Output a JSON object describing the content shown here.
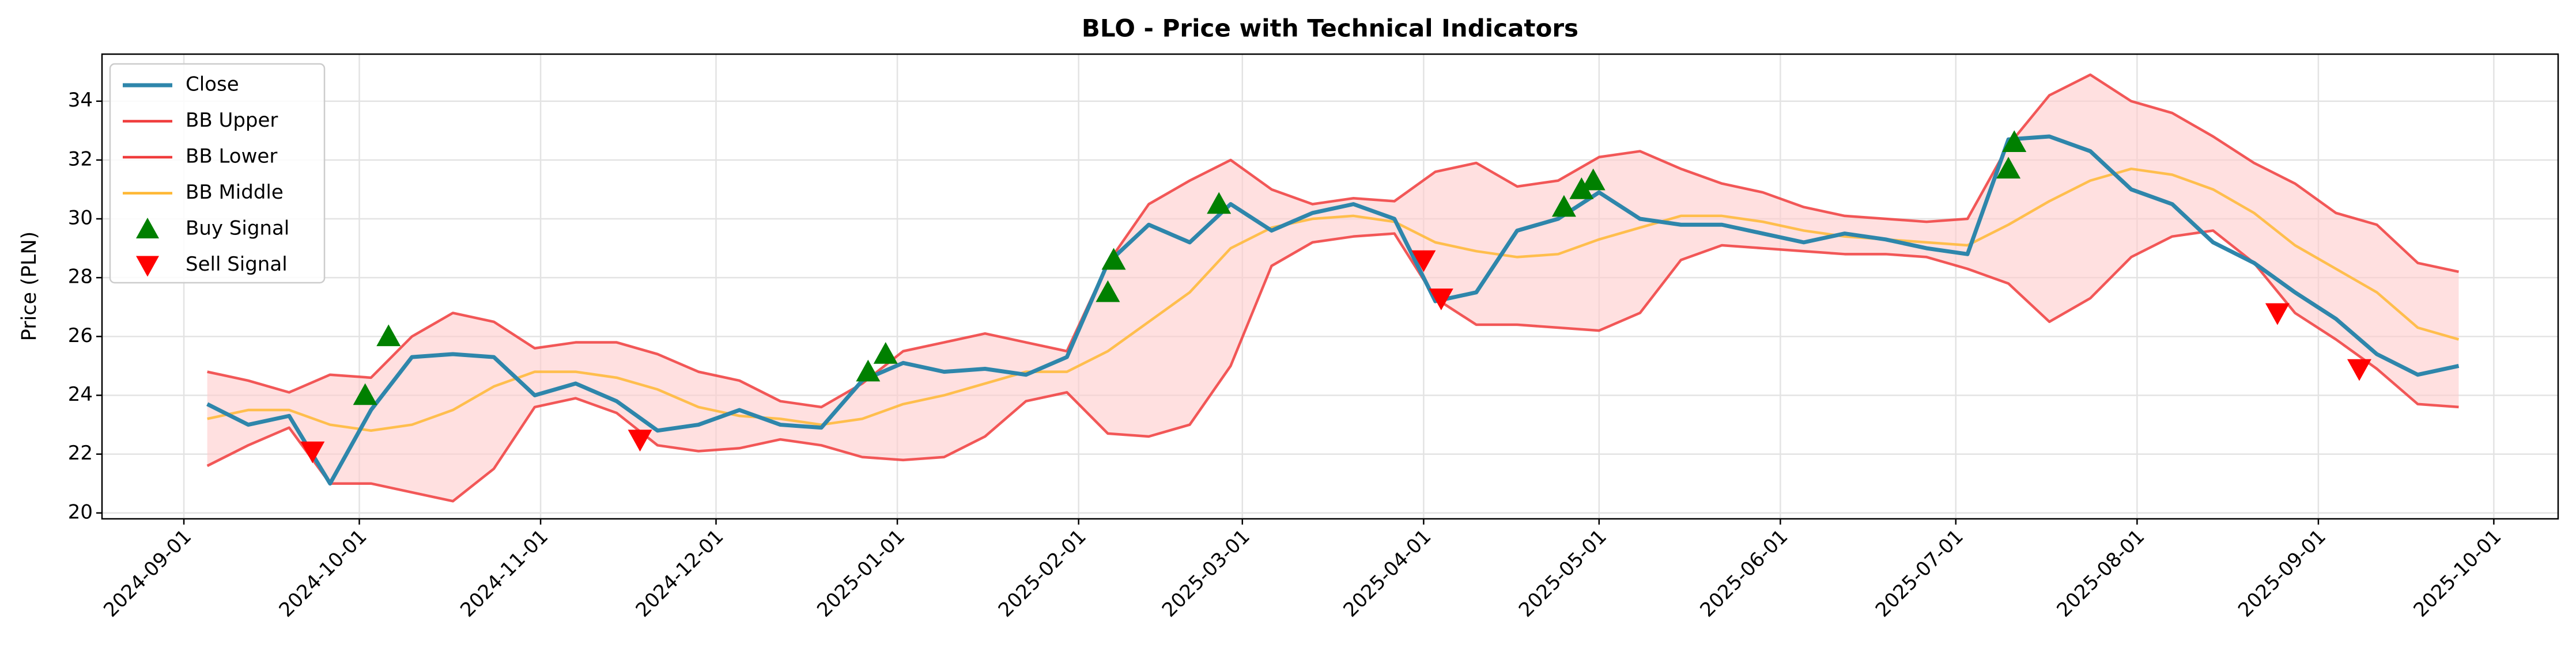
{
  "chart_data": {
    "type": "line",
    "title": "BLO - Price with Technical Indicators",
    "ylabel": "Price (PLN)",
    "x": [
      "2024-09-05",
      "2024-09-12",
      "2024-09-19",
      "2024-09-26",
      "2024-10-03",
      "2024-10-10",
      "2024-10-17",
      "2024-10-24",
      "2024-10-31",
      "2024-11-07",
      "2024-11-14",
      "2024-11-21",
      "2024-11-28",
      "2024-12-05",
      "2024-12-12",
      "2024-12-19",
      "2024-12-26",
      "2025-01-02",
      "2025-01-09",
      "2025-01-16",
      "2025-01-23",
      "2025-01-30",
      "2025-02-06",
      "2025-02-13",
      "2025-02-20",
      "2025-02-27",
      "2025-03-06",
      "2025-03-13",
      "2025-03-20",
      "2025-03-27",
      "2025-04-03",
      "2025-04-10",
      "2025-04-17",
      "2025-04-24",
      "2025-05-01",
      "2025-05-08",
      "2025-05-15",
      "2025-05-22",
      "2025-05-29",
      "2025-06-05",
      "2025-06-12",
      "2025-06-19",
      "2025-06-26",
      "2025-07-03",
      "2025-07-10",
      "2025-07-17",
      "2025-07-24",
      "2025-07-31",
      "2025-08-07",
      "2025-08-14",
      "2025-08-21",
      "2025-08-28",
      "2025-09-04",
      "2025-09-11",
      "2025-09-18",
      "2025-09-25"
    ],
    "series": [
      {
        "name": "Close",
        "color": "#2e86ab",
        "width": 7,
        "values": [
          23.7,
          23.0,
          23.3,
          21.0,
          23.5,
          25.3,
          25.4,
          25.3,
          24.0,
          24.4,
          23.8,
          22.8,
          23.0,
          23.5,
          23.0,
          22.9,
          24.5,
          25.1,
          24.8,
          24.9,
          24.7,
          25.3,
          28.5,
          29.8,
          29.2,
          30.5,
          29.6,
          30.2,
          30.5,
          30.0,
          27.2,
          27.5,
          29.6,
          30.0,
          30.9,
          30.0,
          29.8,
          29.8,
          29.5,
          29.2,
          29.5,
          29.3,
          29.0,
          28.8,
          32.7,
          32.8,
          32.3,
          31.0,
          30.5,
          29.2,
          28.5,
          27.5,
          26.6,
          25.4,
          24.7,
          25.0
        ]
      },
      {
        "name": "BB Upper",
        "color": "#f03c3c",
        "width": 4.5,
        "values": [
          24.8,
          24.5,
          24.1,
          24.7,
          24.6,
          26.0,
          26.8,
          26.5,
          25.6,
          25.8,
          25.8,
          25.4,
          24.8,
          24.5,
          23.8,
          23.6,
          24.4,
          25.5,
          25.8,
          26.1,
          25.8,
          25.5,
          28.5,
          30.5,
          31.3,
          32.0,
          31.0,
          30.5,
          30.7,
          30.6,
          31.6,
          31.9,
          31.1,
          31.3,
          32.1,
          32.3,
          31.7,
          31.2,
          30.9,
          30.4,
          30.1,
          30.0,
          29.9,
          30.0,
          32.5,
          34.2,
          34.9,
          34.0,
          33.6,
          32.8,
          31.9,
          31.2,
          30.2,
          29.8,
          28.5,
          28.2
        ]
      },
      {
        "name": "BB Lower",
        "color": "#f03c3c",
        "width": 4.5,
        "values": [
          21.6,
          22.3,
          22.9,
          21.0,
          21.0,
          20.7,
          20.4,
          21.5,
          23.6,
          23.9,
          23.4,
          22.3,
          22.1,
          22.2,
          22.5,
          22.3,
          21.9,
          21.8,
          21.9,
          22.6,
          23.8,
          24.1,
          22.7,
          22.6,
          23.0,
          25.0,
          28.4,
          29.2,
          29.4,
          29.5,
          27.3,
          26.4,
          26.4,
          26.3,
          26.2,
          26.8,
          28.6,
          29.1,
          29.0,
          28.9,
          28.8,
          28.8,
          28.7,
          28.3,
          27.8,
          26.5,
          27.3,
          28.7,
          29.4,
          29.6,
          28.5,
          26.8,
          25.9,
          24.9,
          23.7,
          23.6
        ]
      },
      {
        "name": "BB Middle",
        "color": "#ffb733",
        "width": 4.5,
        "values": [
          23.2,
          23.5,
          23.5,
          23.0,
          22.8,
          23.0,
          23.5,
          24.3,
          24.8,
          24.8,
          24.6,
          24.2,
          23.6,
          23.3,
          23.2,
          23.0,
          23.2,
          23.7,
          24.0,
          24.4,
          24.8,
          24.8,
          25.5,
          26.5,
          27.5,
          29.0,
          29.7,
          30.0,
          30.1,
          29.9,
          29.2,
          28.9,
          28.7,
          28.8,
          29.3,
          29.7,
          30.1,
          30.1,
          29.9,
          29.6,
          29.4,
          29.3,
          29.2,
          29.1,
          29.8,
          30.6,
          31.3,
          31.7,
          31.5,
          31.0,
          30.2,
          29.1,
          28.3,
          27.5,
          26.3,
          25.9
        ]
      },
      {
        "name": "Buy Signal",
        "color": "#008000",
        "marker": "up",
        "x": [
          "2024-10-02",
          "2024-10-06",
          "2024-12-27",
          "2024-12-30",
          "2025-02-06",
          "2025-02-07",
          "2025-02-25",
          "2025-04-25",
          "2025-04-28",
          "2025-04-30",
          "2025-07-10",
          "2025-07-11"
        ],
        "values": [
          24.0,
          26.0,
          24.8,
          25.4,
          27.5,
          28.6,
          30.5,
          30.4,
          31.0,
          31.3,
          31.7,
          32.6
        ]
      },
      {
        "name": "Sell Signal",
        "color": "#ff0000",
        "marker": "down",
        "x": [
          "2024-09-23",
          "2024-11-18",
          "2025-04-01",
          "2025-04-04",
          "2025-08-25",
          "2025-09-08"
        ],
        "values": [
          22.1,
          22.5,
          28.6,
          27.3,
          26.8,
          24.9
        ]
      }
    ],
    "fill_between": [
      1,
      2
    ],
    "fill_color": "#ffcccc",
    "xlim": [
      "2024-08-18",
      "2025-10-12"
    ],
    "xticks": [
      "2024-09-01",
      "2024-10-01",
      "2024-11-01",
      "2024-12-01",
      "2025-01-01",
      "2025-02-01",
      "2025-03-01",
      "2025-04-01",
      "2025-05-01",
      "2025-06-01",
      "2025-07-01",
      "2025-08-01",
      "2025-09-01",
      "2025-10-01"
    ],
    "ylim": [
      19.8,
      35.6
    ],
    "yticks": [
      20,
      22,
      24,
      26,
      28,
      30,
      32,
      34
    ],
    "grid": true,
    "legend": "upper left"
  }
}
